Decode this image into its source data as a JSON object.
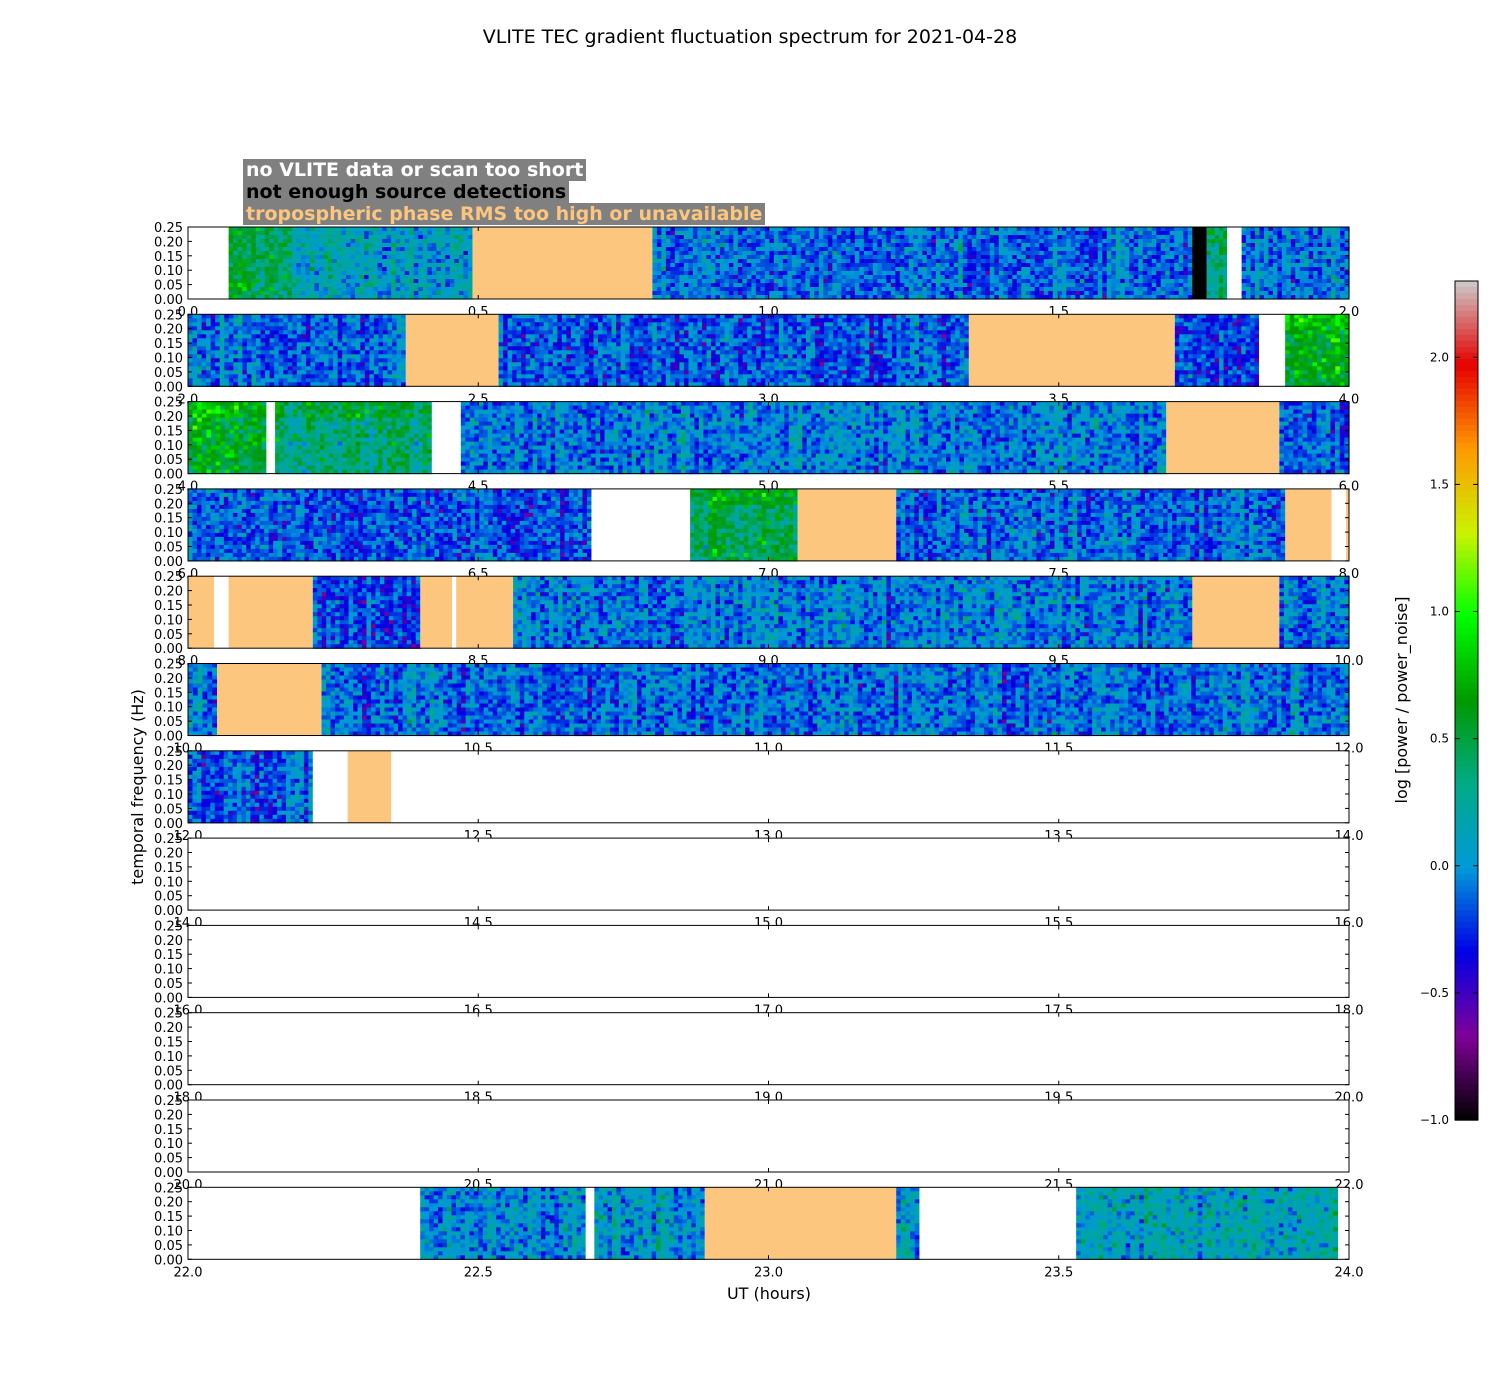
{
  "chart_data": {
    "type": "heatmap",
    "title": "VLITE TEC gradient fluctuation spectrum for 2021-04-28",
    "xlabel": "UT (hours)",
    "ylabel": "temporal frequency (Hz)",
    "colorbar_label": "log [power / power_noise]",
    "colorbar_range": [
      -1.0,
      2.3
    ],
    "colorbar_ticks": [
      "−1.0",
      "−0.5",
      "0.0",
      "0.5",
      "1.0",
      "1.5",
      "2.0"
    ],
    "colormap": "nipy_spectral",
    "ylim": [
      0,
      0.25
    ],
    "yticks": [
      "0.00",
      "0.05",
      "0.10",
      "0.15",
      "0.20",
      "0.25"
    ],
    "grid": false,
    "legend": [
      {
        "text": "no VLITE data or scan too short",
        "color": "#ffffff"
      },
      {
        "text": "not enough source detections",
        "color": "#000000"
      },
      {
        "text": "tropospheric phase RMS too high or unavailable",
        "color": "#fdc67f"
      }
    ],
    "panels": [
      {
        "xlim": [
          0,
          2
        ],
        "xticks": [
          "0.0",
          "0.5",
          "1.0",
          "1.5",
          "2.0"
        ],
        "segments": [
          {
            "start": 0.0,
            "end": 0.07,
            "status": "no_data"
          },
          {
            "start": 0.07,
            "end": 0.49,
            "status": "data",
            "level": 0.1,
            "high": [
              [
                0.07,
                0.18
              ]
            ]
          },
          {
            "start": 0.49,
            "end": 0.8,
            "status": "tropo"
          },
          {
            "start": 0.8,
            "end": 1.73,
            "status": "data",
            "level": -0.1
          },
          {
            "start": 1.73,
            "end": 1.755,
            "status": "few_detections"
          },
          {
            "start": 1.755,
            "end": 1.79,
            "status": "data",
            "level": 0.3
          },
          {
            "start": 1.79,
            "end": 1.815,
            "status": "no_data"
          },
          {
            "start": 1.815,
            "end": 2.0,
            "status": "data",
            "level": -0.05
          }
        ]
      },
      {
        "xlim": [
          2,
          4
        ],
        "xticks": [
          "2.0",
          "2.5",
          "3.0",
          "3.5",
          "4.0"
        ],
        "segments": [
          {
            "start": 2.0,
            "end": 2.375,
            "status": "data",
            "level": -0.1
          },
          {
            "start": 2.375,
            "end": 2.535,
            "status": "tropo"
          },
          {
            "start": 2.535,
            "end": 3.345,
            "status": "data",
            "level": -0.15
          },
          {
            "start": 3.345,
            "end": 3.7,
            "status": "tropo"
          },
          {
            "start": 3.7,
            "end": 3.845,
            "status": "data",
            "level": -0.2
          },
          {
            "start": 3.845,
            "end": 3.89,
            "status": "no_data"
          },
          {
            "start": 3.89,
            "end": 4.0,
            "status": "data",
            "level": 0.6
          }
        ]
      },
      {
        "xlim": [
          4,
          6
        ],
        "xticks": [
          "4.0",
          "4.5",
          "5.0",
          "5.5",
          "6.0"
        ],
        "segments": [
          {
            "start": 4.0,
            "end": 4.135,
            "status": "data",
            "level": 0.6
          },
          {
            "start": 4.135,
            "end": 4.15,
            "status": "no_data"
          },
          {
            "start": 4.15,
            "end": 4.42,
            "status": "data",
            "level": 0.35
          },
          {
            "start": 4.42,
            "end": 4.47,
            "status": "no_data"
          },
          {
            "start": 4.47,
            "end": 5.685,
            "status": "data",
            "level": -0.05
          },
          {
            "start": 5.685,
            "end": 5.88,
            "status": "tropo"
          },
          {
            "start": 5.88,
            "end": 6.0,
            "status": "data",
            "level": -0.1
          }
        ]
      },
      {
        "xlim": [
          6,
          8
        ],
        "xticks": [
          "6.0",
          "6.5",
          "7.0",
          "7.5",
          "8.0"
        ],
        "segments": [
          {
            "start": 6.0,
            "end": 6.695,
            "status": "data",
            "level": -0.15
          },
          {
            "start": 6.695,
            "end": 6.865,
            "status": "no_data"
          },
          {
            "start": 6.865,
            "end": 7.05,
            "status": "data",
            "level": 0.45
          },
          {
            "start": 7.05,
            "end": 7.22,
            "status": "tropo"
          },
          {
            "start": 7.22,
            "end": 7.89,
            "status": "data",
            "level": -0.1
          },
          {
            "start": 7.89,
            "end": 7.97,
            "status": "tropo"
          },
          {
            "start": 7.97,
            "end": 7.995,
            "status": "no_data"
          },
          {
            "start": 7.995,
            "end": 8.0,
            "status": "tropo"
          }
        ]
      },
      {
        "xlim": [
          8,
          10
        ],
        "xticks": [
          "8.0",
          "8.5",
          "9.0",
          "9.5",
          "10.0"
        ],
        "segments": [
          {
            "start": 8.0,
            "end": 8.045,
            "status": "tropo"
          },
          {
            "start": 8.045,
            "end": 8.07,
            "status": "no_data"
          },
          {
            "start": 8.07,
            "end": 8.215,
            "status": "tropo"
          },
          {
            "start": 8.215,
            "end": 8.4,
            "status": "data",
            "level": -0.2
          },
          {
            "start": 8.4,
            "end": 8.455,
            "status": "tropo"
          },
          {
            "start": 8.455,
            "end": 8.462,
            "status": "no_data"
          },
          {
            "start": 8.462,
            "end": 8.56,
            "status": "tropo"
          },
          {
            "start": 8.56,
            "end": 9.73,
            "status": "data",
            "level": -0.05
          },
          {
            "start": 9.73,
            "end": 9.88,
            "status": "tropo"
          },
          {
            "start": 9.88,
            "end": 10.0,
            "status": "data",
            "level": -0.1
          }
        ]
      },
      {
        "xlim": [
          10,
          12
        ],
        "xticks": [
          "10.0",
          "10.5",
          "11.0",
          "11.5",
          "12.0"
        ],
        "segments": [
          {
            "start": 10.0,
            "end": 10.05,
            "status": "data",
            "level": 0.0
          },
          {
            "start": 10.05,
            "end": 10.23,
            "status": "tropo"
          },
          {
            "start": 10.23,
            "end": 12.0,
            "status": "data",
            "level": -0.1
          }
        ]
      },
      {
        "xlim": [
          12,
          14
        ],
        "xticks": [
          "12.0",
          "12.5",
          "13.0",
          "13.5",
          "14.0"
        ],
        "segments": [
          {
            "start": 12.0,
            "end": 12.215,
            "status": "data",
            "level": -0.15
          },
          {
            "start": 12.215,
            "end": 12.275,
            "status": "no_data"
          },
          {
            "start": 12.275,
            "end": 12.35,
            "status": "tropo"
          }
        ]
      },
      {
        "xlim": [
          14,
          16
        ],
        "xticks": [
          "14.0",
          "14.5",
          "15.0",
          "15.5",
          "16.0"
        ],
        "segments": []
      },
      {
        "xlim": [
          16,
          18
        ],
        "xticks": [
          "16.0",
          "16.5",
          "17.0",
          "17.5",
          "18.0"
        ],
        "segments": []
      },
      {
        "xlim": [
          18,
          20
        ],
        "xticks": [
          "18.0",
          "18.5",
          "19.0",
          "19.5",
          "20.0"
        ],
        "segments": []
      },
      {
        "xlim": [
          20,
          22
        ],
        "xticks": [
          "20.0",
          "20.5",
          "21.0",
          "21.5",
          "22.0"
        ],
        "segments": []
      },
      {
        "xlim": [
          22,
          24
        ],
        "xticks": [
          "22.0",
          "22.5",
          "23.0",
          "23.5",
          "24.0"
        ],
        "segments": [
          {
            "start": 22.0,
            "end": 22.4,
            "status": "no_data"
          },
          {
            "start": 22.4,
            "end": 22.685,
            "status": "data",
            "level": 0.0
          },
          {
            "start": 22.685,
            "end": 22.7,
            "status": "no_data"
          },
          {
            "start": 22.7,
            "end": 22.89,
            "status": "data",
            "level": 0.05
          },
          {
            "start": 22.89,
            "end": 23.22,
            "status": "tropo"
          },
          {
            "start": 23.22,
            "end": 23.26,
            "status": "data",
            "level": 0.1
          },
          {
            "start": 23.26,
            "end": 23.53,
            "status": "no_data"
          },
          {
            "start": 23.53,
            "end": 23.98,
            "status": "data",
            "level": 0.15
          }
        ]
      }
    ]
  }
}
